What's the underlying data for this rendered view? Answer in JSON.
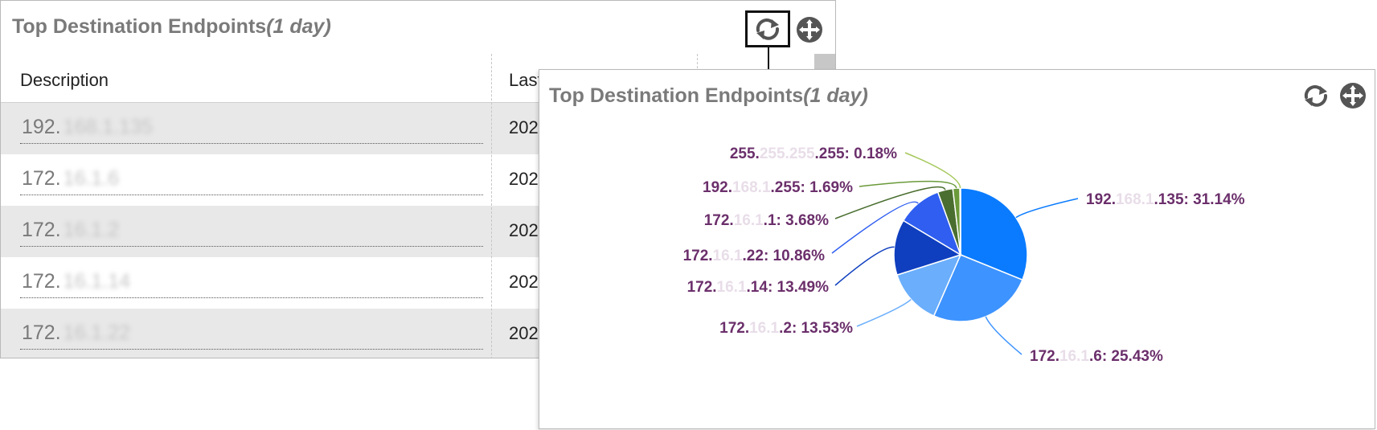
{
  "widget_title": "Top Destination Endpoints",
  "widget_period": "(1 day)",
  "table": {
    "columns": [
      "Description",
      "Last"
    ],
    "rows": [
      {
        "ip_prefix": "192.",
        "ip_rest": "168.1.135",
        "date": "202"
      },
      {
        "ip_prefix": "172.",
        "ip_rest": "16.1.6",
        "date": "202"
      },
      {
        "ip_prefix": "172.",
        "ip_rest": "16.1.2",
        "date": "202"
      },
      {
        "ip_prefix": "172.",
        "ip_rest": "16.1.14",
        "date": "202"
      },
      {
        "ip_prefix": "172.",
        "ip_rest": "16.1.22",
        "date": "202"
      }
    ]
  },
  "icons": {
    "toggle": "chart-table-toggle-icon",
    "move": "move-icon"
  },
  "colors": {
    "title": "#7a7a7a",
    "label": "#6b2f6b"
  },
  "chart_data": {
    "type": "pie",
    "slices": [
      {
        "label_prefix": "192.",
        "label_blur": "168.1",
        "label_suffix": ".135: 31.14%",
        "value": 31.14,
        "color": "#0a7bff"
      },
      {
        "label_prefix": "172.",
        "label_blur": "16.1",
        "label_suffix": ".6: 25.43%",
        "value": 25.43,
        "color": "#3d93ff"
      },
      {
        "label_prefix": "172.",
        "label_blur": "16.1",
        "label_suffix": ".2: 13.53%",
        "value": 13.53,
        "color": "#6aaefc"
      },
      {
        "label_prefix": "172.",
        "label_blur": "16.1",
        "label_suffix": ".14: 13.49%",
        "value": 13.49,
        "color": "#0f3fbf"
      },
      {
        "label_prefix": "172.",
        "label_blur": "16.1",
        "label_suffix": ".22: 10.86%",
        "value": 10.86,
        "color": "#2f5ef0"
      },
      {
        "label_prefix": "172.",
        "label_blur": "16.1",
        "label_suffix": ".1: 3.68%",
        "value": 3.68,
        "color": "#4a6e2f"
      },
      {
        "label_prefix": "192.",
        "label_blur": "168.1",
        "label_suffix": ".255: 1.69%",
        "value": 1.69,
        "color": "#6a9a3a"
      },
      {
        "label_prefix": "255.",
        "label_blur": "255.255",
        "label_suffix": ".255: 0.18%",
        "value": 0.18,
        "color": "#a5c85a"
      }
    ]
  }
}
